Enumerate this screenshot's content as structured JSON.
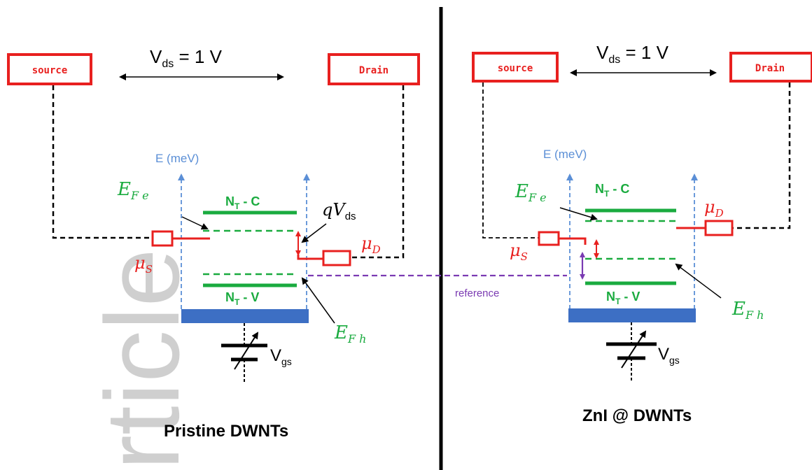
{
  "watermark": "rticle",
  "colors": {
    "red": "#e8201f",
    "green": "#1aab3f",
    "blue": "#2e5fd1",
    "axis_blue": "#5b8fd6",
    "purple": "#7a3ab2",
    "black": "#000000"
  },
  "left": {
    "source_label": "source",
    "drain_label": "Drain",
    "vds": {
      "main": "V",
      "sub": "ds",
      "rest": " = 1 V"
    },
    "axis_label": "E (meV)",
    "ntc": {
      "main": "N",
      "sub": "T",
      "rest": " - C"
    },
    "ntv": {
      "main": "N",
      "sub": "T",
      "rest": " - V"
    },
    "efe": {
      "main": "E",
      "sub": "F e"
    },
    "efh": {
      "main": "E",
      "sub": "F h"
    },
    "mus": {
      "main": "μ",
      "sub": "S"
    },
    "mud": {
      "main": "μ",
      "sub": "D"
    },
    "qvds": {
      "main": "qV",
      "sub": "ds"
    },
    "vgs": {
      "main": "V",
      "sub": "gs"
    },
    "caption": "Pristine DWNTs"
  },
  "right": {
    "source_label": "source",
    "drain_label": "Drain",
    "vds": {
      "main": "V",
      "sub": "ds",
      "rest": " = 1 V"
    },
    "axis_label": "E (meV)",
    "ntc": {
      "main": "N",
      "sub": "T",
      "rest": " - C"
    },
    "ntv": {
      "main": "N",
      "sub": "T",
      "rest": " - V"
    },
    "efe": {
      "main": "E",
      "sub": "F e"
    },
    "efh": {
      "main": "E",
      "sub": "F h"
    },
    "mus": {
      "main": "μ",
      "sub": "S"
    },
    "mud": {
      "main": "μ",
      "sub": "D"
    },
    "vgs": {
      "main": "V",
      "sub": "gs"
    },
    "caption": "ZnI @ DWNTs"
  },
  "reference_label": "reference"
}
